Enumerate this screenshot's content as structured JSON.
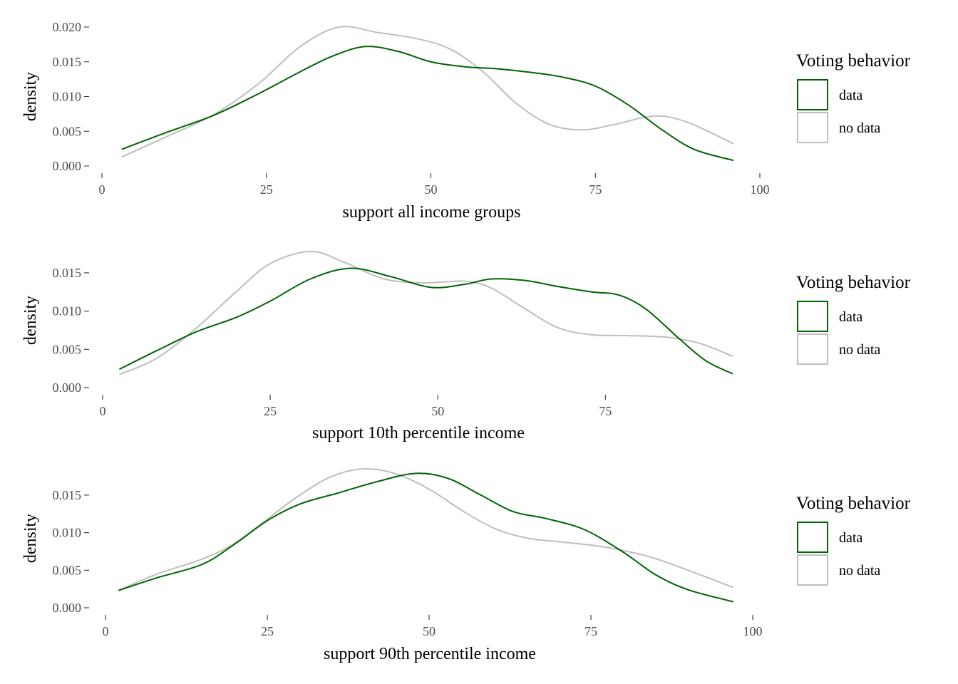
{
  "palette": {
    "data": "#006400",
    "no_data": "#bebebe",
    "tick": "#333333"
  },
  "chart_data": [
    {
      "type": "line",
      "title": "",
      "xlabel": "support all income groups",
      "ylabel": "density",
      "xlim": [
        0,
        100
      ],
      "ylim": [
        0,
        0.02
      ],
      "xticks": [
        "0",
        "25",
        "50",
        "75",
        "100"
      ],
      "yticks": [
        "0.000",
        "0.005",
        "0.010",
        "0.015",
        "0.020"
      ],
      "xtick_values": [
        0,
        25,
        50,
        75,
        100
      ],
      "ytick_values": [
        0,
        0.005,
        0.01,
        0.015,
        0.02
      ],
      "grid": false,
      "legend": {
        "title": "Voting behavior",
        "position": "right",
        "entries": [
          "data",
          "no data"
        ]
      },
      "series": [
        {
          "name": "data",
          "x": [
            3,
            10,
            17,
            24,
            30,
            35,
            40,
            45,
            50,
            55,
            60,
            65,
            70,
            75,
            80,
            85,
            90,
            96
          ],
          "y": [
            0.0024,
            0.0049,
            0.0073,
            0.0105,
            0.0135,
            0.0158,
            0.0172,
            0.0165,
            0.015,
            0.0143,
            0.014,
            0.0135,
            0.0128,
            0.0115,
            0.0088,
            0.0053,
            0.0024,
            0.0008
          ]
        },
        {
          "name": "no data",
          "x": [
            3,
            10,
            17,
            24,
            30,
            36,
            42,
            48,
            53,
            58,
            63,
            68,
            73,
            78,
            84,
            89,
            96
          ],
          "y": [
            0.0013,
            0.0043,
            0.0074,
            0.012,
            0.0171,
            0.02,
            0.0192,
            0.0183,
            0.0168,
            0.0135,
            0.009,
            0.006,
            0.0052,
            0.006,
            0.0072,
            0.0063,
            0.0032
          ]
        }
      ]
    },
    {
      "type": "line",
      "title": "",
      "xlabel": "support 10th percentile income",
      "ylabel": "density",
      "xlim": [
        0,
        94
      ],
      "ylim": [
        0,
        0.0176
      ],
      "xticks": [
        "0",
        "25",
        "50",
        "75"
      ],
      "yticks": [
        "0.000",
        "0.005",
        "0.010",
        "0.015"
      ],
      "xtick_values": [
        0,
        25,
        50,
        75
      ],
      "ytick_values": [
        0,
        0.005,
        0.01,
        0.015
      ],
      "grid": false,
      "legend": {
        "title": "Voting behavior",
        "position": "right",
        "entries": [
          "data",
          "no data"
        ]
      },
      "series": [
        {
          "name": "data",
          "x": [
            2.5,
            8,
            14,
            20,
            25,
            31,
            37,
            43,
            49,
            54,
            58,
            63,
            68,
            73,
            77,
            81,
            86,
            90,
            94
          ],
          "y": [
            0.0024,
            0.0048,
            0.0073,
            0.0092,
            0.0113,
            0.0142,
            0.0156,
            0.0145,
            0.0131,
            0.0135,
            0.0142,
            0.014,
            0.0132,
            0.0125,
            0.0121,
            0.0103,
            0.0064,
            0.0035,
            0.0018
          ]
        },
        {
          "name": "no data",
          "x": [
            2.5,
            8,
            14,
            20,
            25,
            31,
            36,
            42,
            48,
            54,
            58,
            63,
            68,
            73,
            78,
            84,
            89,
            94
          ],
          "y": [
            0.0017,
            0.0038,
            0.0078,
            0.0126,
            0.0162,
            0.0178,
            0.0164,
            0.0142,
            0.0137,
            0.0139,
            0.013,
            0.0103,
            0.0078,
            0.0069,
            0.0068,
            0.0066,
            0.0058,
            0.0041
          ]
        }
      ]
    },
    {
      "type": "line",
      "title": "",
      "xlabel": "support 90th percentile income",
      "ylabel": "density",
      "xlim": [
        0,
        100
      ],
      "ylim": [
        0,
        0.0185
      ],
      "xticks": [
        "0",
        "25",
        "50",
        "75",
        "100"
      ],
      "yticks": [
        "0.000",
        "0.005",
        "0.010",
        "0.015"
      ],
      "xtick_values": [
        0,
        25,
        50,
        75,
        100
      ],
      "ytick_values": [
        0,
        0.005,
        0.01,
        0.015
      ],
      "grid": false,
      "legend": {
        "title": "Voting behavior",
        "position": "right",
        "entries": [
          "data",
          "no data"
        ]
      },
      "series": [
        {
          "name": "data",
          "x": [
            2,
            8,
            15,
            20,
            25,
            30,
            36,
            42,
            48,
            53,
            58,
            63,
            68,
            74,
            80,
            85,
            90,
            97
          ],
          "y": [
            0.0023,
            0.004,
            0.0058,
            0.0085,
            0.0116,
            0.0138,
            0.0153,
            0.0168,
            0.0179,
            0.0172,
            0.015,
            0.0128,
            0.0119,
            0.0104,
            0.0074,
            0.0044,
            0.0024,
            0.0008
          ]
        },
        {
          "name": "no data",
          "x": [
            2,
            8,
            15,
            20,
            25,
            30,
            35,
            40,
            45,
            50,
            55,
            60,
            65,
            70,
            77,
            84,
            90,
            97
          ],
          "y": [
            0.0023,
            0.0045,
            0.0065,
            0.0086,
            0.0118,
            0.015,
            0.0175,
            0.0185,
            0.0178,
            0.0158,
            0.013,
            0.0106,
            0.0093,
            0.0088,
            0.0081,
            0.0068,
            0.005,
            0.0027
          ]
        }
      ]
    }
  ]
}
